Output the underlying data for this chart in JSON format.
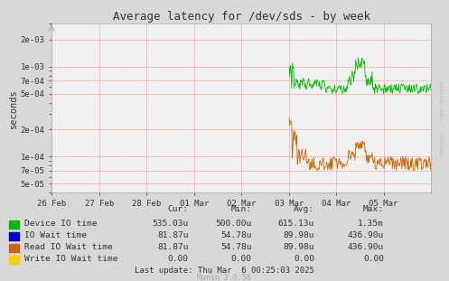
{
  "title": "Average latency for /dev/sds - by week",
  "ylabel": "seconds",
  "bg_color": "#d8d8d8",
  "plot_bg_color": "#f0f0f0",
  "grid_color": "#ffaaaa",
  "x_tick_labels": [
    "26 Feb",
    "27 Feb",
    "28 Feb",
    "01 Mar",
    "02 Mar",
    "03 Mar",
    "04 Mar",
    "05 Mar"
  ],
  "yticks": [
    5e-05,
    7e-05,
    0.0001,
    0.0002,
    0.0005,
    0.0007,
    0.001,
    0.002
  ],
  "ytick_labels": [
    "5e-05",
    "7e-05",
    "1e-04",
    "2e-04",
    "5e-04",
    "7e-04",
    "1e-03",
    "2e-03"
  ],
  "ylim": [
    4e-05,
    0.003
  ],
  "xlim": [
    0,
    8
  ],
  "legend_items": [
    {
      "label": "Device IO time",
      "color": "#00bb00"
    },
    {
      "label": "IO Wait time",
      "color": "#0000cc"
    },
    {
      "label": "Read IO Wait time",
      "color": "#cc6600"
    },
    {
      "label": "Write IO Wait time",
      "color": "#ffcc00"
    }
  ],
  "table_headers": [
    "Cur:",
    "Min:",
    "Avg:",
    "Max:"
  ],
  "table_rows": [
    [
      "535.03u",
      "500.00u",
      "615.13u",
      "1.35m"
    ],
    [
      "81.87u",
      "54.78u",
      "89.98u",
      "436.90u"
    ],
    [
      "81.87u",
      "54.78u",
      "89.98u",
      "436.90u"
    ],
    [
      "0.00",
      "0.00",
      "0.00",
      "0.00"
    ]
  ],
  "last_update": "Last update: Thu Mar  6 00:25:03 2025",
  "munin_version": "Munin 2.0.56",
  "rrdtool_text": "RRDTOOL / TOBI OETIKER"
}
